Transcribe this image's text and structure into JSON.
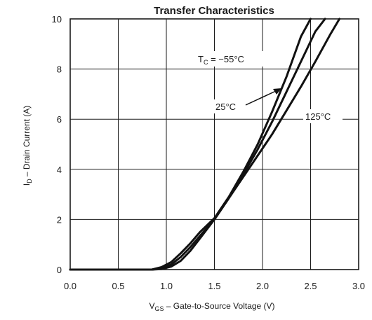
{
  "chart_data": {
    "type": "line",
    "title": "Transfer Characteristics",
    "xlabel": {
      "main": "V",
      "sub": "GS",
      "rest": " –  Gate-to-Source Voltage (V)"
    },
    "ylabel": {
      "main": "I",
      "sub": "D",
      "rest": " –  Drain Current (A)"
    },
    "xlim": [
      0.0,
      3.0
    ],
    "ylim": [
      0,
      10
    ],
    "x_ticks": [
      "0.0",
      "0.5",
      "1.0",
      "1.5",
      "2.0",
      "2.5",
      "3.0"
    ],
    "y_ticks": [
      "0",
      "2",
      "4",
      "6",
      "8",
      "10"
    ],
    "grid": true,
    "series": [
      {
        "name": "T_C = −55°C",
        "x": [
          0.0,
          0.85,
          0.95,
          1.05,
          1.15,
          1.25,
          1.35,
          1.5,
          1.65,
          1.8,
          1.95,
          2.1,
          2.25,
          2.4,
          2.5
        ],
        "y": [
          0.0,
          0.0,
          0.1,
          0.3,
          0.65,
          1.05,
          1.5,
          2.05,
          2.9,
          3.9,
          5.0,
          6.3,
          7.7,
          9.3,
          10.0
        ]
      },
      {
        "name": "25°C",
        "x": [
          0.0,
          0.85,
          0.95,
          1.05,
          1.15,
          1.25,
          1.35,
          1.5,
          1.65,
          1.8,
          1.95,
          2.1,
          2.25,
          2.4,
          2.55,
          2.65
        ],
        "y": [
          0.0,
          0.0,
          0.05,
          0.2,
          0.5,
          0.9,
          1.35,
          2.0,
          2.85,
          3.8,
          4.8,
          5.9,
          7.1,
          8.3,
          9.5,
          10.0
        ]
      },
      {
        "name": "125°C",
        "x": [
          0.0,
          0.85,
          0.95,
          1.05,
          1.15,
          1.25,
          1.35,
          1.5,
          1.65,
          1.8,
          1.95,
          2.1,
          2.25,
          2.4,
          2.55,
          2.7,
          2.8
        ],
        "y": [
          0.0,
          0.0,
          0.02,
          0.12,
          0.35,
          0.75,
          1.25,
          2.0,
          2.85,
          3.7,
          4.55,
          5.4,
          6.35,
          7.3,
          8.3,
          9.35,
          10.0
        ]
      }
    ],
    "annotations": [
      {
        "main": "T",
        "sub": "C",
        "rest": " = −55°C"
      },
      {
        "text": "25°C"
      },
      {
        "text": "125°C"
      }
    ]
  }
}
